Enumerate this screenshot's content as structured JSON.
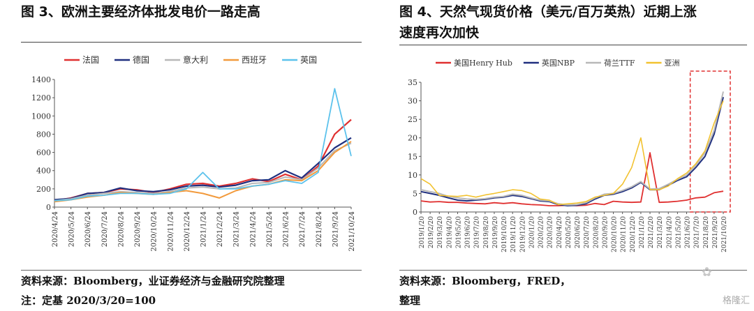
{
  "left": {
    "title": "图 3、欧洲主要经济体批发电价一路走高",
    "source": "资料来源：Bloomberg，业证券经济与金融研究院整理",
    "note": "注：定基 2020/3/20=100"
  },
  "right": {
    "title_line1": "图 4、天然气现货价格（美元/百万英热）近期上涨",
    "title_line2": "速度再次加快",
    "source": "资料来源：Bloomberg，FRED，",
    "source_line2": "整理"
  },
  "watermark": "格隆汇",
  "colors": {
    "red": "#e03030",
    "navy": "#1f2f7f",
    "gray": "#b8b8b8",
    "orange": "#f29a3c",
    "sky": "#5cc2ec",
    "gold": "#f2c230",
    "dash": "#e03030"
  },
  "chart_data": [
    {
      "type": "line",
      "title": "图 3、欧洲主要经济体批发电价一路走高",
      "xlabel": "",
      "ylabel": "",
      "ylim": [
        0,
        1400
      ],
      "yticks": [
        0,
        200,
        400,
        600,
        800,
        1000,
        1200,
        1400
      ],
      "categories": [
        "2020/4/24",
        "2020/5/24",
        "2020/6/24",
        "2020/7/24",
        "2020/8/24",
        "2020/9/24",
        "2020/10/24",
        "2020/11/24",
        "2020/12/24",
        "2021/1/24",
        "2021/2/24",
        "2021/3/24",
        "2021/4/24",
        "2021/5/24",
        "2021/6/24",
        "2021/7/24",
        "2021/8/24",
        "2021/9/24",
        "2021/10/24"
      ],
      "legend_position": "top",
      "grid": false,
      "series": [
        {
          "name": "法国",
          "color": "#e03030",
          "values": [
            70,
            100,
            150,
            160,
            200,
            190,
            160,
            200,
            250,
            260,
            230,
            260,
            310,
            280,
            360,
            300,
            450,
            800,
            960
          ]
        },
        {
          "name": "德国",
          "color": "#1f2f7f",
          "values": [
            80,
            95,
            150,
            160,
            210,
            180,
            170,
            190,
            230,
            240,
            220,
            240,
            290,
            300,
            400,
            320,
            480,
            650,
            760
          ]
        },
        {
          "name": "意大利",
          "color": "#b8b8b8",
          "values": [
            70,
            90,
            130,
            150,
            170,
            160,
            150,
            170,
            210,
            220,
            200,
            210,
            260,
            270,
            330,
            300,
            430,
            620,
            700
          ]
        },
        {
          "name": "西班牙",
          "color": "#f29a3c",
          "values": [
            60,
            80,
            110,
            130,
            160,
            150,
            140,
            160,
            180,
            150,
            100,
            180,
            230,
            250,
            300,
            290,
            400,
            600,
            720
          ]
        },
        {
          "name": "英国",
          "color": "#5cc2ec",
          "values": [
            70,
            80,
            120,
            130,
            150,
            150,
            140,
            150,
            200,
            380,
            200,
            200,
            230,
            250,
            290,
            260,
            380,
            1300,
            560
          ]
        }
      ]
    },
    {
      "type": "line",
      "title": "图 4、天然气现货价格（美元/百万英热）近期上涨速度再次加快",
      "xlabel": "",
      "ylabel": "",
      "ylim": [
        0,
        35
      ],
      "yticks": [
        0,
        5,
        10,
        15,
        20,
        25,
        30,
        35
      ],
      "categories": [
        "2019/1/20",
        "2019/2/20",
        "2019/3/20",
        "2019/4/20",
        "2019/5/20",
        "2019/6/20",
        "2019/7/20",
        "2019/8/20",
        "2019/9/20",
        "2019/10/20",
        "2019/11/20",
        "2019/12/20",
        "2020/1/20",
        "2020/2/20",
        "2020/3/20",
        "2020/4/20",
        "2020/5/20",
        "2020/6/20",
        "2020/7/20",
        "2020/8/20",
        "2020/9/20",
        "2020/10/20",
        "2020/11/20",
        "2020/12/20",
        "2021/1/20",
        "2021/2/20",
        "2021/3/20",
        "2021/4/20",
        "2021/5/20",
        "2021/6/20",
        "2021/7/20",
        "2021/8/20",
        "2021/9/20",
        "2021/10/20"
      ],
      "xtick_labels": [
        "2019/1/20",
        "2019/2/20",
        "2019/3/20",
        "2019/4/20",
        "2019/5/20",
        "2019/6/20",
        "2019/7/20",
        "2019/8/20",
        "2019/9/20",
        "2019/10/20",
        "2019/11/20",
        "2019/12/20",
        "2020/1/20",
        "2020/2/20",
        "2020/3/20",
        "2020/4/20",
        "2020/5/20",
        "2020/6/20",
        "2020/7/20",
        "2020/8/20",
        "2020/9/20",
        "2020/10/20",
        "2020/11/20",
        "2020/12/20",
        "2021/1/20",
        "2021/2/20",
        "2021/3/20",
        "2021/4/20",
        "2021/5/20",
        "2021/6/20",
        "2021/7/20",
        "2021/8/20",
        "2021/9/20",
        "2021/10/20"
      ],
      "legend_position": "top",
      "grid": false,
      "annotation": "dashed highlight box over 2021/8/20 – 2021/10/20",
      "series": [
        {
          "name": "美国Henry Hub",
          "color": "#e03030",
          "values": [
            3.0,
            2.7,
            2.8,
            2.6,
            2.6,
            2.4,
            2.3,
            2.2,
            2.5,
            2.3,
            2.5,
            2.2,
            2.0,
            1.9,
            1.7,
            1.7,
            1.8,
            1.7,
            1.8,
            2.3,
            2.0,
            2.9,
            2.7,
            2.6,
            2.7,
            16.0,
            2.6,
            2.7,
            2.9,
            3.2,
            3.8,
            4.0,
            5.2,
            5.6
          ]
        },
        {
          "name": "英国NBP",
          "color": "#1f2f7f",
          "values": [
            5.5,
            5.0,
            4.5,
            3.8,
            3.2,
            3.0,
            3.2,
            3.4,
            3.8,
            4.0,
            4.5,
            4.2,
            3.6,
            3.0,
            2.8,
            2.0,
            1.7,
            1.8,
            2.2,
            3.5,
            4.5,
            4.8,
            5.5,
            6.5,
            8.0,
            6.0,
            6.0,
            7.2,
            8.5,
            9.5,
            12.0,
            15.0,
            21.0,
            31.0
          ]
        },
        {
          "name": "荷兰TTF",
          "color": "#b8b8b8",
          "values": [
            6.0,
            5.5,
            5.0,
            4.2,
            3.8,
            3.5,
            3.4,
            3.6,
            4.0,
            4.2,
            4.8,
            4.5,
            3.8,
            3.2,
            3.0,
            2.2,
            1.9,
            2.0,
            2.5,
            3.8,
            4.8,
            5.0,
            5.8,
            6.8,
            8.2,
            6.2,
            6.3,
            7.5,
            8.8,
            10.0,
            12.5,
            16.0,
            22.0,
            32.5
          ]
        },
        {
          "name": "亚洲",
          "color": "#f2c230",
          "values": [
            9.0,
            7.5,
            4.5,
            4.3,
            4.2,
            4.5,
            4.0,
            4.6,
            5.0,
            5.5,
            6.0,
            5.8,
            5.0,
            3.5,
            3.2,
            2.0,
            2.2,
            2.4,
            2.8,
            4.0,
            4.5,
            5.0,
            7.5,
            12.0,
            20.0,
            6.0,
            6.0,
            7.0,
            9.0,
            10.5,
            13.0,
            16.5,
            24.0,
            30.0
          ]
        }
      ]
    }
  ]
}
